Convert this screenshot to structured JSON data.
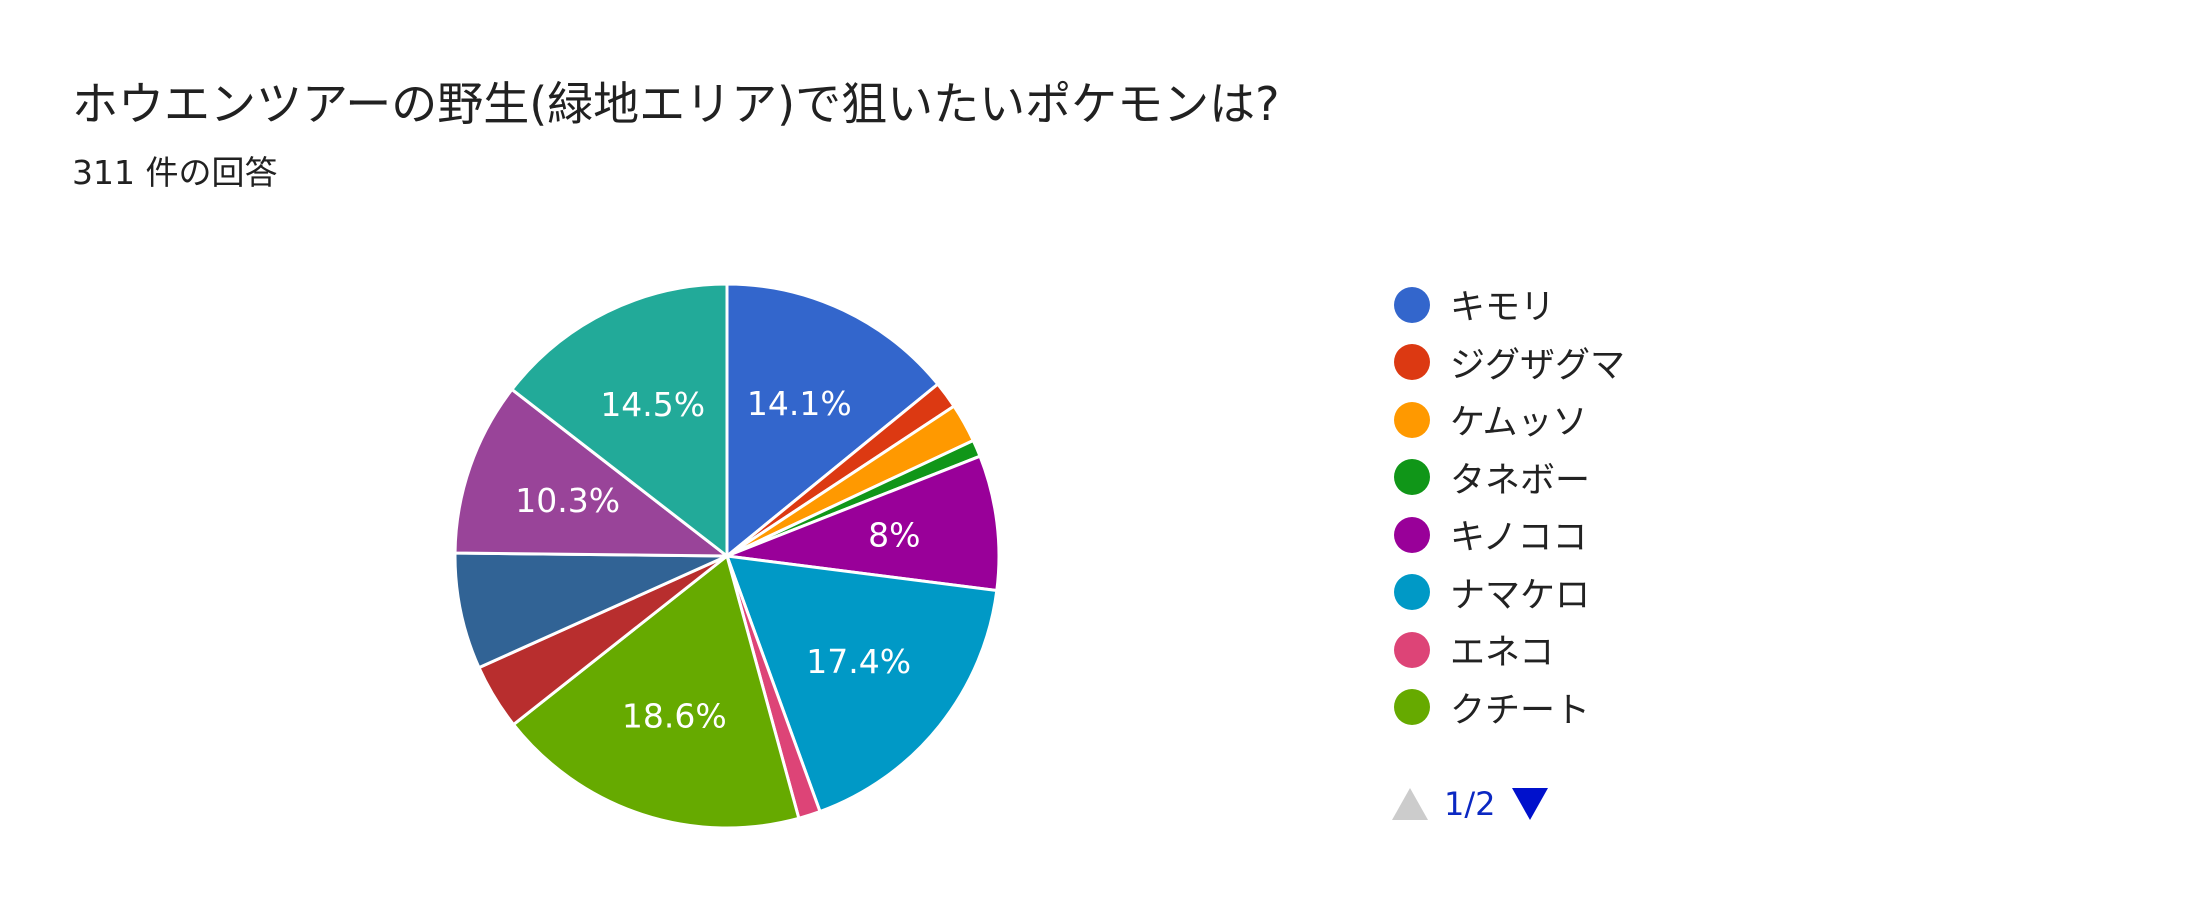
{
  "header": {
    "title": "ホウエンツアーの野生(緑地エリア)で狙いたいポケモンは?",
    "response_count": "311 件の回答"
  },
  "chart_data": {
    "type": "pie",
    "start_angle_deg": 90,
    "direction": "clockwise",
    "slices": [
      {
        "name": "キモリ",
        "value": 14.1,
        "label": "14.1%",
        "color": "#3366cc"
      },
      {
        "name": "ジグザグマ",
        "value": 1.6,
        "label": "",
        "color": "#dc3912"
      },
      {
        "name": "ケムッソ",
        "value": 2.3,
        "label": "",
        "color": "#ff9900"
      },
      {
        "name": "タネボー",
        "value": 1.0,
        "label": "",
        "color": "#109618"
      },
      {
        "name": "キノココ",
        "value": 8.0,
        "label": "8%",
        "color": "#990099"
      },
      {
        "name": "ナマケロ",
        "value": 17.4,
        "label": "17.4%",
        "color": "#0099c6"
      },
      {
        "name": "エネコ",
        "value": 1.3,
        "label": "",
        "color": "#dd4477"
      },
      {
        "name": "クチート",
        "value": 18.6,
        "label": "18.6%",
        "color": "#66aa00"
      },
      {
        "value": 3.9,
        "label": "",
        "color": "#b82e2e"
      },
      {
        "value": 6.9,
        "label": "",
        "color": "#316395"
      },
      {
        "value": 10.3,
        "label": "10.3%",
        "color": "#994499"
      },
      {
        "value": 14.5,
        "label": "14.5%",
        "color": "#22aa99"
      }
    ]
  },
  "legend": {
    "items": [
      {
        "label": "キモリ",
        "color": "#3366cc"
      },
      {
        "label": "ジグザグマ",
        "color": "#dc3912"
      },
      {
        "label": "ケムッソ",
        "color": "#ff9900"
      },
      {
        "label": "タネボー",
        "color": "#109618"
      },
      {
        "label": "キノココ",
        "color": "#990099"
      },
      {
        "label": "ナマケロ",
        "color": "#0099c6"
      },
      {
        "label": "エネコ",
        "color": "#dd4477"
      },
      {
        "label": "クチート",
        "color": "#66aa00"
      }
    ],
    "pager": {
      "text": "1/2",
      "prev_icon": "triangle-up-icon",
      "next_icon": "triangle-down-icon",
      "prev_color": "#cccccc",
      "next_color": "#0011cc"
    }
  }
}
